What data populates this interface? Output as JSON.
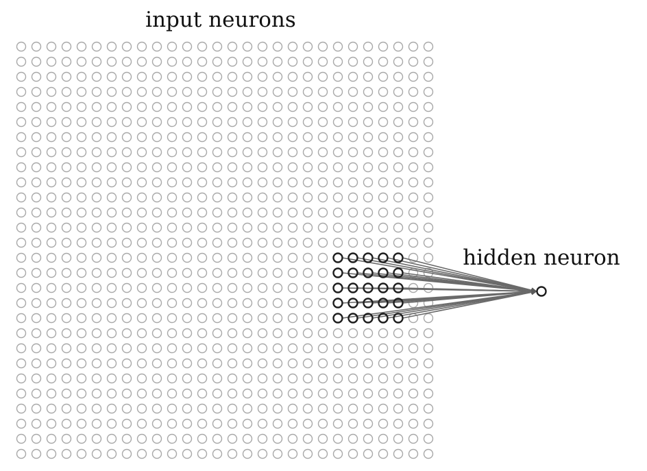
{
  "labels": {
    "input_title": "input neurons",
    "hidden_title": "hidden neuron"
  },
  "grid": {
    "rows": 28,
    "cols": 28
  },
  "receptive_field": {
    "row_start": 14,
    "col_start": 21,
    "size": 5
  },
  "colors": {
    "input_neuron": "#a8a8a8",
    "field_neuron": "#1e1e1e",
    "connection": "#6a6a6a",
    "hidden_neuron": "#1e1e1e"
  }
}
